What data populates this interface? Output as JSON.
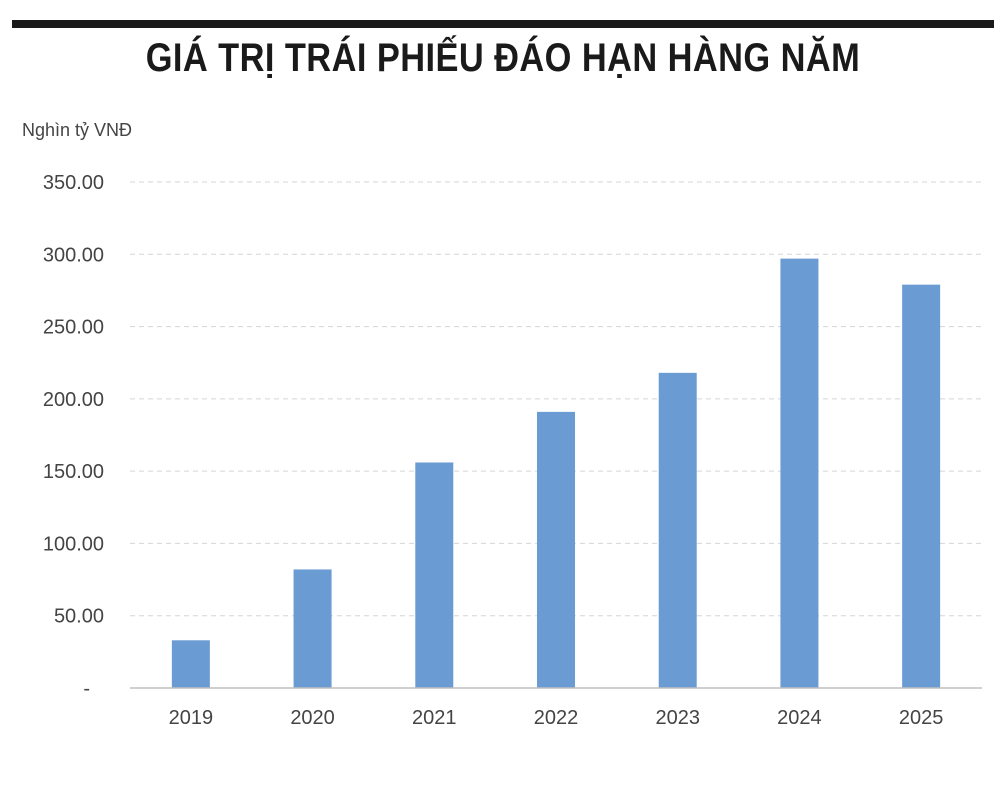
{
  "title": "GIÁ TRỊ TRÁI PHIẾU ĐÁO HẠN HÀNG NĂM",
  "unit_label": "Nghìn tỷ VNĐ",
  "colors": {
    "bar": "#6a9bd3",
    "text": "#444444",
    "grid": "#d5d5d5",
    "axis": "#bfbfbf",
    "title": "#1a1a1a"
  },
  "chart_data": {
    "type": "bar",
    "title": "GIÁ TRỊ TRÁI PHIẾU ĐÁO HẠN HÀNG NĂM",
    "xlabel": "",
    "ylabel": "Nghìn tỷ VNĐ",
    "categories": [
      "2019",
      "2020",
      "2021",
      "2022",
      "2023",
      "2024",
      "2025"
    ],
    "values": [
      33,
      82,
      156,
      191,
      218,
      297,
      279
    ],
    "ylim": [
      0,
      350
    ],
    "yticks": [
      0,
      50,
      100,
      150,
      200,
      250,
      300,
      350
    ],
    "ytick_labels": [
      "-",
      "50.00",
      "100.00",
      "150.00",
      "200.00",
      "250.00",
      "300.00",
      "350.00"
    ],
    "grid": true,
    "grid_style": "dashed",
    "legend": "none"
  }
}
